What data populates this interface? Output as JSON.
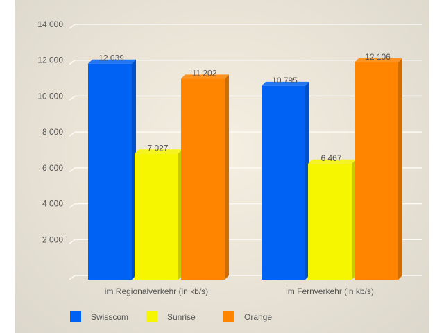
{
  "chart_data": {
    "type": "bar",
    "categories": [
      "im Regionalverkehr (in kb/s)",
      "im Fernverkehr (in kb/s)"
    ],
    "series": [
      {
        "name": "Swisscom",
        "values": [
          12039,
          10795
        ],
        "color": "#0062f5",
        "labels": [
          "12 039",
          "10 795"
        ]
      },
      {
        "name": "Sunrise",
        "values": [
          7027,
          6467
        ],
        "color": "#f6f600",
        "labels": [
          "7 027",
          "6 467"
        ]
      },
      {
        "name": "Orange",
        "values": [
          11202,
          12106
        ],
        "color": "#ff8400",
        "labels": [
          "11 202",
          "12 106"
        ]
      }
    ],
    "yticks": [
      0,
      2000,
      4000,
      6000,
      8000,
      10000,
      12000,
      14000
    ],
    "ytick_labels": [
      "",
      "2 000",
      "4 000",
      "6 000",
      "8 000",
      "10 000",
      "12 000",
      "14 000"
    ],
    "ylim": [
      0,
      14000
    ],
    "grid": true,
    "legend": "bottom-left",
    "style": "3d"
  }
}
